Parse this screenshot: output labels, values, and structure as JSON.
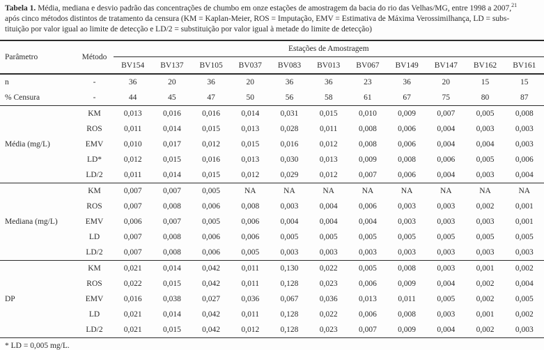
{
  "caption": {
    "label": "Tabela 1.",
    "line1_rest": " Média, mediana e desvio padrão das concentrações de chumbo em onze estações de amostragem da bacia do rio das Velhas/MG, entre 1998 a 2007,",
    "citation_superscript": "21",
    "line2": "após cinco métodos distintos de tratamento da censura (KM = Kaplan-Meier, ROS = Imputação, EMV = Estimativa de Máxima Verossimilhança, LD = subs-",
    "line3": "tituição por valor igual ao limite de detecção e LD/2 = substituição por valor igual à metade do limite de detecção)"
  },
  "table": {
    "header": {
      "parameter": "Parâmetro",
      "method": "Método",
      "stations_group": "Estações de Amostragem",
      "stations": [
        "BV154",
        "BV137",
        "BV105",
        "BV037",
        "BV083",
        "BV013",
        "BV067",
        "BV149",
        "BV147",
        "BV162",
        "BV161"
      ]
    },
    "summary_rows": [
      {
        "label": "n",
        "method": "-",
        "values": [
          "36",
          "20",
          "36",
          "20",
          "36",
          "36",
          "23",
          "36",
          "20",
          "15",
          "15"
        ]
      },
      {
        "label": "% Censura",
        "method": "-",
        "values": [
          "44",
          "45",
          "47",
          "50",
          "56",
          "58",
          "61",
          "67",
          "75",
          "80",
          "87"
        ]
      }
    ],
    "sections": [
      {
        "label": "Média (mg/L)",
        "rows": [
          {
            "method": "KM",
            "values": [
              "0,013",
              "0,016",
              "0,016",
              "0,014",
              "0,031",
              "0,015",
              "0,010",
              "0,009",
              "0,007",
              "0,005",
              "0,008"
            ]
          },
          {
            "method": "ROS",
            "values": [
              "0,011",
              "0,014",
              "0,015",
              "0,013",
              "0,028",
              "0,011",
              "0,008",
              "0,006",
              "0,004",
              "0,003",
              "0,003"
            ]
          },
          {
            "method": "EMV",
            "values": [
              "0,010",
              "0,017",
              "0,012",
              "0,015",
              "0,016",
              "0,012",
              "0,008",
              "0,006",
              "0,004",
              "0,004",
              "0,003"
            ]
          },
          {
            "method": "LD*",
            "values": [
              "0,012",
              "0,015",
              "0,016",
              "0,013",
              "0,030",
              "0,013",
              "0,009",
              "0,008",
              "0,006",
              "0,005",
              "0,006"
            ]
          },
          {
            "method": "LD/2",
            "values": [
              "0,011",
              "0,014",
              "0,015",
              "0,012",
              "0,029",
              "0,012",
              "0,007",
              "0,006",
              "0,004",
              "0,003",
              "0,004"
            ]
          }
        ]
      },
      {
        "label": "Mediana (mg/L)",
        "rows": [
          {
            "method": "KM",
            "values": [
              "0,007",
              "0,007",
              "0,005",
              "NA",
              "NA",
              "NA",
              "NA",
              "NA",
              "NA",
              "NA",
              "NA"
            ]
          },
          {
            "method": "ROS",
            "values": [
              "0,007",
              "0,008",
              "0,006",
              "0,008",
              "0,003",
              "0,004",
              "0,006",
              "0,003",
              "0,003",
              "0,002",
              "0,001"
            ]
          },
          {
            "method": "EMV",
            "values": [
              "0,006",
              "0,007",
              "0,005",
              "0,006",
              "0,004",
              "0,004",
              "0,004",
              "0,003",
              "0,003",
              "0,003",
              "0,001"
            ]
          },
          {
            "method": "LD",
            "values": [
              "0,007",
              "0,008",
              "0,006",
              "0,006",
              "0,005",
              "0,005",
              "0,005",
              "0,005",
              "0,005",
              "0,005",
              "0,005"
            ]
          },
          {
            "method": "LD/2",
            "values": [
              "0,007",
              "0,008",
              "0,006",
              "0,005",
              "0,003",
              "0,003",
              "0,003",
              "0,003",
              "0,003",
              "0,003",
              "0,003"
            ]
          }
        ]
      },
      {
        "label": "DP",
        "rows": [
          {
            "method": "KM",
            "values": [
              "0,021",
              "0,014",
              "0,042",
              "0,011",
              "0,130",
              "0,022",
              "0,005",
              "0,008",
              "0,003",
              "0,001",
              "0,002"
            ]
          },
          {
            "method": "ROS",
            "values": [
              "0,022",
              "0,015",
              "0,042",
              "0,011",
              "0,128",
              "0,023",
              "0,006",
              "0,009",
              "0,004",
              "0,002",
              "0,004"
            ]
          },
          {
            "method": "EMV",
            "values": [
              "0,016",
              "0,038",
              "0,027",
              "0,036",
              "0,067",
              "0,036",
              "0,013",
              "0,011",
              "0,005",
              "0,002",
              "0,005"
            ]
          },
          {
            "method": "LD",
            "values": [
              "0,021",
              "0,014",
              "0,042",
              "0,011",
              "0,128",
              "0,022",
              "0,006",
              "0,008",
              "0,003",
              "0,001",
              "0,002"
            ]
          },
          {
            "method": "LD/2",
            "values": [
              "0,021",
              "0,015",
              "0,042",
              "0,012",
              "0,128",
              "0,023",
              "0,007",
              "0,009",
              "0,004",
              "0,002",
              "0,003"
            ]
          }
        ]
      }
    ]
  },
  "footnote": "* LD = 0,005 mg/L.",
  "colors": {
    "text": "#2b2b2b",
    "rule": "#2b2b2b",
    "background": "#fdfdfd"
  }
}
